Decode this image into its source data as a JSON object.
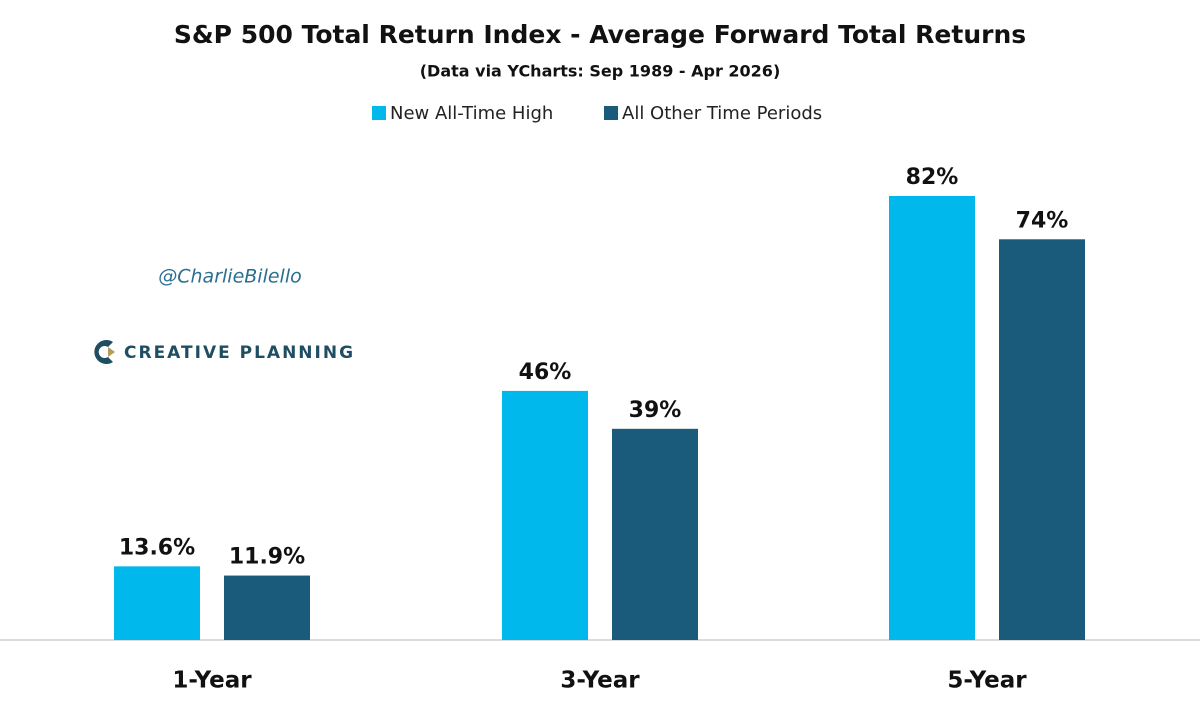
{
  "chart_data": {
    "type": "bar",
    "title": "S&P 500 Total Return Index - Average Forward Total Returns",
    "subtitle": "(Data via YCharts: Sep 1989 - Apr 2026)",
    "categories": [
      "1-Year",
      "3-Year",
      "5-Year"
    ],
    "series": [
      {
        "name": "New All-Time High",
        "color": "#00b8ec",
        "values": [
          13.6,
          46,
          82
        ],
        "value_labels": [
          "13.6%",
          "46%",
          "82%"
        ]
      },
      {
        "name": "All Other Time Periods",
        "color": "#1a5b7c",
        "values": [
          11.9,
          39,
          74
        ],
        "value_labels": [
          "11.9%",
          "39%",
          "74%"
        ]
      }
    ],
    "annotations": [
      "@CharlieBilello",
      "CREATIVE PLANNING"
    ]
  }
}
